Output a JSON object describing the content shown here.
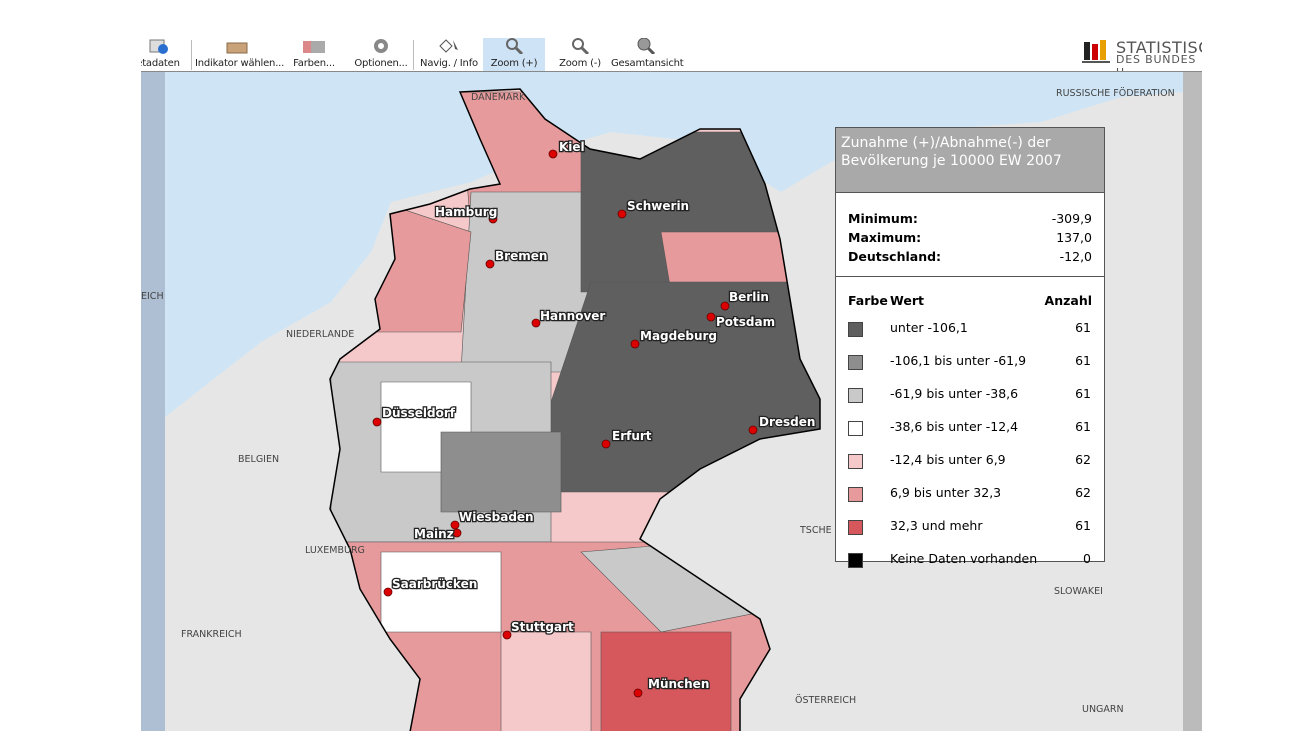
{
  "toolbar": {
    "items": [
      "etadaten",
      "Indikator wählen...",
      "Farben...",
      "Optionen...",
      "Navig. / Info",
      "Zoom (+)",
      "Zoom (-)",
      "Gesamtansicht"
    ]
  },
  "logo": {
    "line1": "STATISTISC",
    "line2": "DES BUNDES U"
  },
  "map": {
    "countries": [
      "DÄNEMARK",
      "RUSSISCHE FÖDERATION",
      "EICH",
      "NIEDERLANDE",
      "BELGIEN",
      "LUXEMBURG",
      "FRANKREICH",
      "TSCHE",
      "SLOWAKEI",
      "ÖSTERREICH",
      "UNGARN"
    ],
    "cities": [
      "Kiel",
      "Hamburg",
      "Schwerin",
      "Bremen",
      "Berlin",
      "Potsdam",
      "Hannover",
      "Magdeburg",
      "Düsseldorf",
      "Dresden",
      "Erfurt",
      "Wiesbaden",
      "Mainz",
      "Saarbrücken",
      "Stuttgart",
      "München"
    ]
  },
  "legend": {
    "title": "Zunahme (+)/Abnahme(-) der Bevölkerung je 10000 EW 2007",
    "stats": [
      {
        "label": "Minimum:",
        "value": "-309,9"
      },
      {
        "label": "Maximum:",
        "value": "137,0"
      },
      {
        "label": "Deutschland:",
        "value": "-12,0"
      }
    ],
    "header": {
      "color": "Farbe",
      "value": "Wert",
      "count": "Anzahl"
    },
    "rows": [
      {
        "color": "#5f5f5f",
        "label": "unter -106,1",
        "count": 61
      },
      {
        "color": "#8e8e8e",
        "label": "-106,1 bis unter -61,9",
        "count": 61
      },
      {
        "color": "#c9c9c9",
        "label": "-61,9 bis unter -38,6",
        "count": 61
      },
      {
        "color": "#ffffff",
        "label": "-38,6 bis unter -12,4",
        "count": 61
      },
      {
        "color": "#f5c9c9",
        "label": "-12,4 bis unter 6,9",
        "count": 62
      },
      {
        "color": "#e79a9b",
        "label": "6,9 bis unter 32,3",
        "count": 62
      },
      {
        "color": "#d6575c",
        "label": "32,3 und mehr",
        "count": 61
      },
      {
        "color": "#000000",
        "label": "Keine Daten vorhanden",
        "count": 0
      }
    ]
  }
}
